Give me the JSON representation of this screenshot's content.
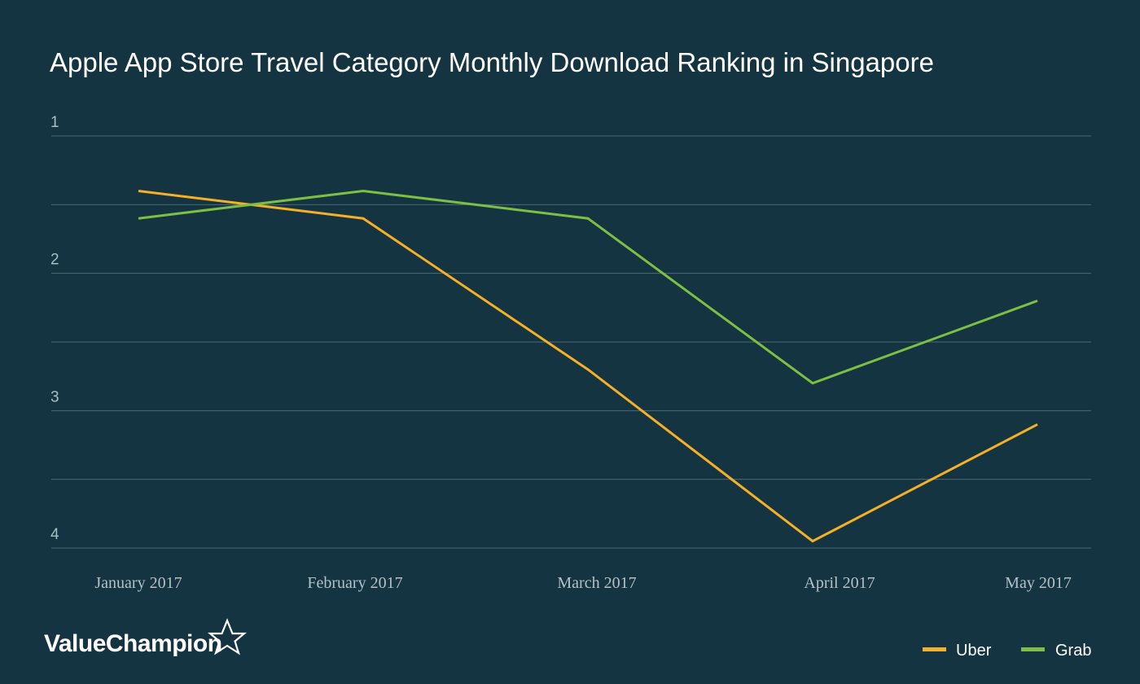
{
  "chart_data": {
    "type": "line",
    "title": "Apple App Store Travel Category Monthly Download Ranking in Singapore",
    "categories": [
      "January 2017",
      "February 2017",
      "March 2017",
      "April 2017",
      "May 2017"
    ],
    "series": [
      {
        "name": "Uber",
        "color": "#f5b027",
        "values": [
          1.4,
          1.6,
          2.7,
          3.95,
          3.1
        ]
      },
      {
        "name": "Grab",
        "color": "#7cbf42",
        "values": [
          1.6,
          1.4,
          1.6,
          2.8,
          2.2
        ]
      }
    ],
    "yticks": [
      "1",
      "2",
      "3",
      "4"
    ],
    "ylim": [
      1,
      4
    ],
    "y_reversed": true,
    "grid": true,
    "legend": "bottom-right"
  },
  "branding": {
    "logo_text": "ValueChampion",
    "logo_icon": "star-outline-icon"
  },
  "colors": {
    "background": "#143441",
    "gridline": "#4d6a74"
  }
}
